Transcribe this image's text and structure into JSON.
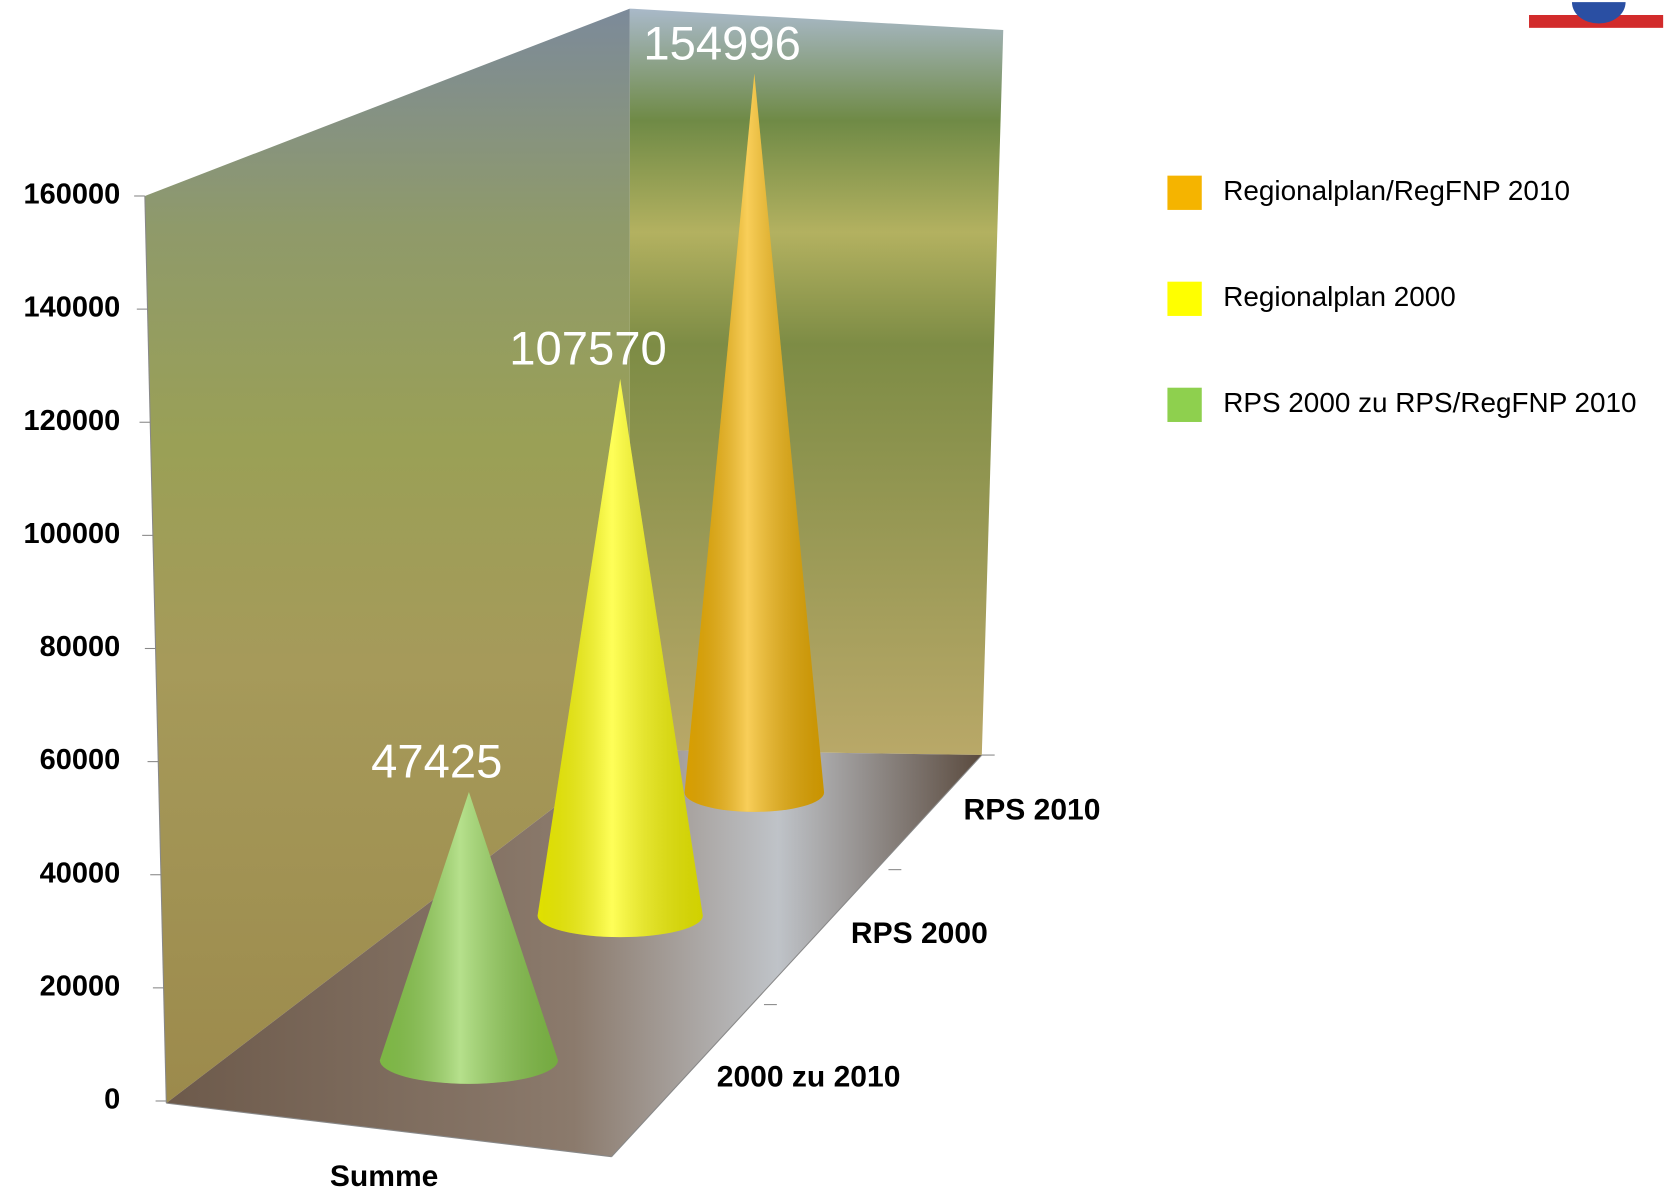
{
  "chart_data": {
    "type": "cone3d",
    "categories": [
      "Summe"
    ],
    "depth_categories": [
      "2000 zu 2010",
      "RPS 2000",
      "RPS 2010"
    ],
    "series": [
      {
        "name": "Regionalplan/RegFNP 2010",
        "color": "#f5b400",
        "values": [
          154996
        ]
      },
      {
        "name": "Regionalplan 2000",
        "color": "#ffff00",
        "values": [
          107570
        ]
      },
      {
        "name": "RPS 2000 zu RPS/RegFNP 2010",
        "color": "#8ed04e",
        "values": [
          47425
        ]
      }
    ],
    "ylim": [
      0,
      160000
    ],
    "yticks": [
      0,
      20000,
      40000,
      60000,
      80000,
      100000,
      120000,
      140000,
      160000
    ],
    "legend": "right"
  }
}
